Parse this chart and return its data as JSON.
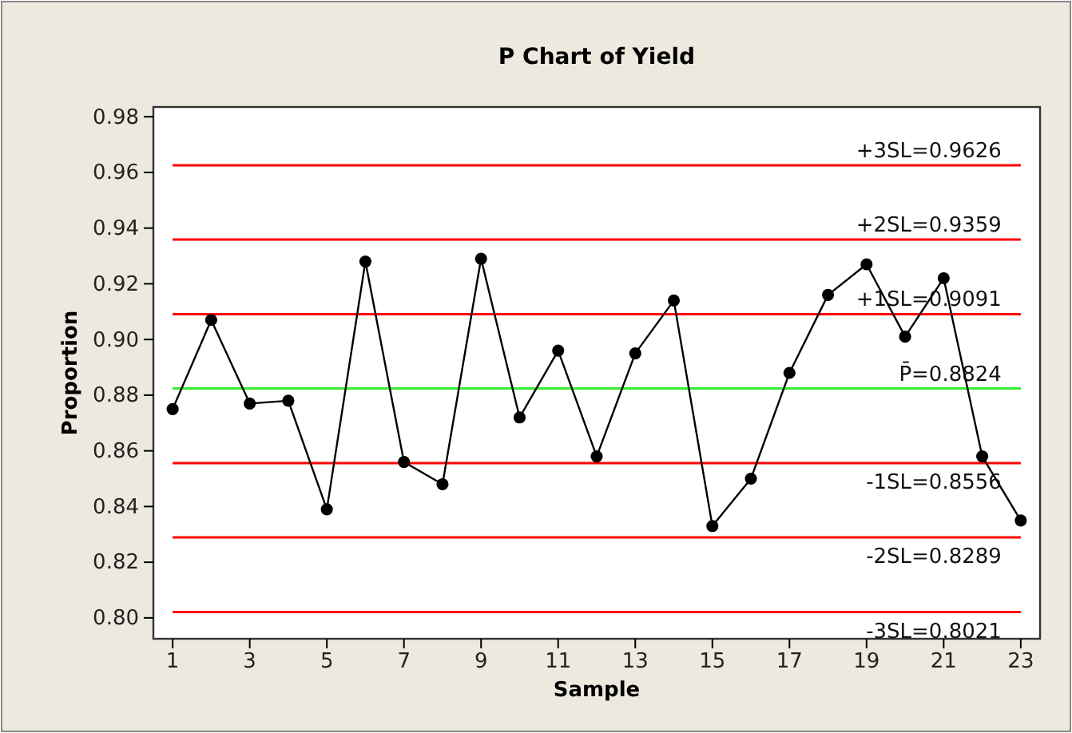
{
  "chart_data": {
    "type": "line",
    "title": "P Chart of Yield",
    "xlabel": "Sample",
    "ylabel": "Proportion",
    "x": [
      1,
      2,
      3,
      4,
      5,
      6,
      7,
      8,
      9,
      10,
      11,
      12,
      13,
      14,
      15,
      16,
      17,
      18,
      19,
      20,
      21,
      22,
      23
    ],
    "series": [
      {
        "color": "#000000",
        "values": [
          0.875,
          0.907,
          0.877,
          0.878,
          0.839,
          0.928,
          0.856,
          0.848,
          0.929,
          0.872,
          0.896,
          0.858,
          0.895,
          0.914,
          0.833,
          0.85,
          0.888,
          0.916,
          0.927,
          0.901,
          0.922,
          0.858,
          0.835
        ]
      }
    ],
    "xlim": [
      0.5,
      23.5
    ],
    "xticks": [
      1,
      3,
      5,
      7,
      9,
      11,
      13,
      15,
      17,
      19,
      21,
      23
    ],
    "ylim": [
      0.7925,
      0.9835
    ],
    "yticks": [
      {
        "value": 0.8,
        "label": "0.80"
      },
      {
        "value": 0.82,
        "label": "0.82"
      },
      {
        "value": 0.84,
        "label": "0.84"
      },
      {
        "value": 0.86,
        "label": "0.86"
      },
      {
        "value": 0.88,
        "label": "0.88"
      },
      {
        "value": 0.9,
        "label": "0.90"
      },
      {
        "value": 0.92,
        "label": "0.92"
      },
      {
        "value": 0.94,
        "label": "0.94"
      },
      {
        "value": 0.96,
        "label": "0.96"
      },
      {
        "value": 0.98,
        "label": "0.98"
      }
    ],
    "ref_lines": [
      {
        "axis": "y",
        "value": 0.9626,
        "label": "+3SL=0.9626",
        "color": "#ff0000"
      },
      {
        "axis": "y",
        "value": 0.9359,
        "label": "+2SL=0.9359",
        "color": "#ff0000"
      },
      {
        "axis": "y",
        "value": 0.9091,
        "label": "+1SL=0.9091",
        "color": "#ff0000"
      },
      {
        "axis": "y",
        "value": 0.8824,
        "label": "P̄=0.8824",
        "color": "#33ee33"
      },
      {
        "axis": "y",
        "value": 0.8556,
        "label": "-1SL=0.8556",
        "color": "#ff0000"
      },
      {
        "axis": "y",
        "value": 0.8289,
        "label": "-2SL=0.8289",
        "color": "#ff0000"
      },
      {
        "axis": "y",
        "value": 0.8021,
        "label": "-3SL=0.8021",
        "color": "#ff0000"
      }
    ],
    "marker": "circle",
    "line_style": "solid",
    "grid": false
  }
}
